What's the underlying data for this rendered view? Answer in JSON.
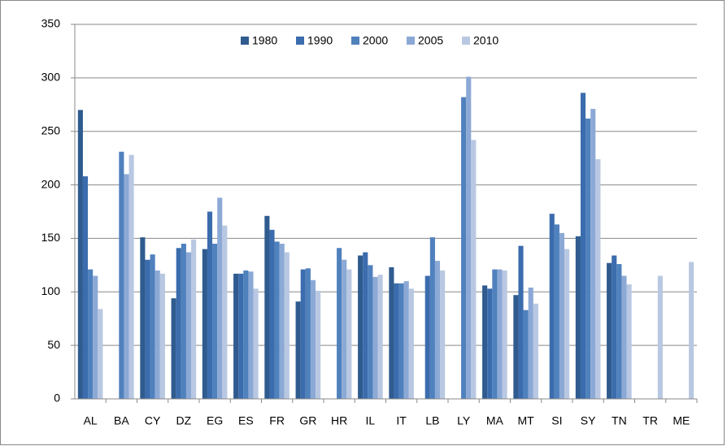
{
  "chart_data": {
    "type": "bar",
    "categories": [
      "AL",
      "BA",
      "CY",
      "DZ",
      "EG",
      "ES",
      "FR",
      "GR",
      "HR",
      "IL",
      "IT",
      "LB",
      "LY",
      "MA",
      "MT",
      "SI",
      "SY",
      "TN",
      "TR",
      "ME"
    ],
    "series": [
      {
        "name": "1980",
        "color": "#2f5b8f",
        "values": [
          270,
          null,
          151,
          94,
          140,
          117,
          171,
          91,
          null,
          134,
          123,
          null,
          null,
          106,
          97,
          null,
          152,
          127,
          null,
          null
        ]
      },
      {
        "name": "1990",
        "color": "#3b6cad",
        "values": [
          208,
          null,
          130,
          141,
          175,
          117,
          158,
          121,
          null,
          137,
          108,
          115,
          null,
          103,
          143,
          173,
          286,
          134,
          null,
          null
        ]
      },
      {
        "name": "2000",
        "color": "#4f81bd",
        "values": [
          121,
          231,
          135,
          145,
          145,
          120,
          147,
          122,
          141,
          125,
          108,
          151,
          282,
          121,
          83,
          163,
          262,
          126,
          null,
          null
        ]
      },
      {
        "name": "2005",
        "color": "#8ca9d6",
        "values": [
          115,
          210,
          120,
          137,
          188,
          119,
          145,
          111,
          130,
          114,
          110,
          129,
          301,
          121,
          104,
          155,
          271,
          115,
          null,
          null
        ]
      },
      {
        "name": "2010",
        "color": "#b9c8e2",
        "values": [
          84,
          228,
          117,
          149,
          162,
          103,
          137,
          101,
          121,
          116,
          103,
          120,
          242,
          120,
          89,
          140,
          224,
          107,
          115,
          128
        ]
      }
    ],
    "ylim": [
      0,
      350
    ],
    "yticks": [
      0,
      50,
      100,
      150,
      200,
      250,
      300,
      350
    ],
    "grid": true
  }
}
